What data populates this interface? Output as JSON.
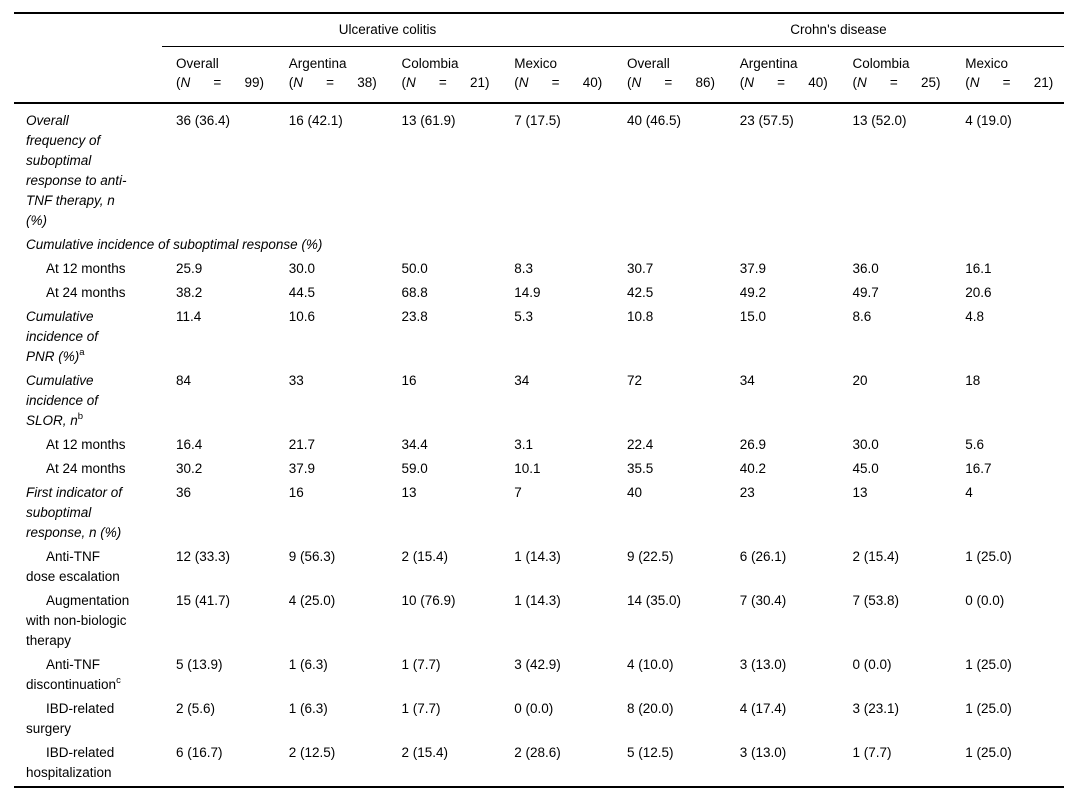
{
  "table": {
    "group_headers": [
      {
        "label": "Ulcerative colitis"
      },
      {
        "label": "Crohn's disease"
      }
    ],
    "columns": [
      {
        "name": "Overall",
        "n_label": "(N = 99)"
      },
      {
        "name": "Argentina",
        "n_label": "(N = 38)"
      },
      {
        "name": "Colombia",
        "n_label": "(N = 21)"
      },
      {
        "name": "Mexico",
        "n_label": "(N = 40)"
      },
      {
        "name": "Overall",
        "n_label": "(N = 86)"
      },
      {
        "name": "Argentina",
        "n_label": "(N = 40)"
      },
      {
        "name": "Colombia",
        "n_label": "(N = 25)"
      },
      {
        "name": "Mexico",
        "n_label": "(N = 21)"
      }
    ],
    "rows": [
      {
        "label": "Overall frequency of suboptimal response to anti-TNF therapy, n (%)",
        "style": "category",
        "values": [
          "36 (36.4)",
          "16 (42.1)",
          "13 (61.9)",
          "7 (17.5)",
          "40 (46.5)",
          "23 (57.5)",
          "13 (52.0)",
          "4 (19.0)"
        ]
      },
      {
        "label": "Cumulative incidence of suboptimal response (%)",
        "style": "category-span",
        "values": []
      },
      {
        "label": "At 12 months",
        "style": "sub",
        "values": [
          "25.9",
          "30.0",
          "50.0",
          "8.3",
          "30.7",
          "37.9",
          "36.0",
          "16.1"
        ]
      },
      {
        "label": "At 24 months",
        "style": "sub",
        "values": [
          "38.2",
          "44.5",
          "68.8",
          "14.9",
          "42.5",
          "49.2",
          "49.7",
          "20.6"
        ]
      },
      {
        "label": "Cumulative incidence of PNR (%)",
        "sup": "a",
        "style": "category",
        "values": [
          "11.4",
          "10.6",
          "23.8",
          "5.3",
          "10.8",
          "15.0",
          "8.6",
          "4.8"
        ]
      },
      {
        "label": "Cumulative incidence of SLOR, n",
        "sup": "b",
        "style": "category",
        "values": [
          "84",
          "33",
          "16",
          "34",
          "72",
          "34",
          "20",
          "18"
        ]
      },
      {
        "label": "At 12 months",
        "style": "sub",
        "values": [
          "16.4",
          "21.7",
          "34.4",
          "3.1",
          "22.4",
          "26.9",
          "30.0",
          "5.6"
        ]
      },
      {
        "label": "At 24 months",
        "style": "sub",
        "values": [
          "30.2",
          "37.9",
          "59.0",
          "10.1",
          "35.5",
          "40.2",
          "45.0",
          "16.7"
        ]
      },
      {
        "label": "First indicator of suboptimal response, n (%)",
        "style": "category",
        "values": [
          "36",
          "16",
          "13",
          "7",
          "40",
          "23",
          "13",
          "4"
        ]
      },
      {
        "label": "Anti-TNF dose escalation",
        "style": "sub",
        "values": [
          "12 (33.3)",
          "9 (56.3)",
          "2 (15.4)",
          "1 (14.3)",
          "9 (22.5)",
          "6 (26.1)",
          "2 (15.4)",
          "1 (25.0)"
        ]
      },
      {
        "label": "Augmentation with non-biologic therapy",
        "style": "sub",
        "values": [
          "15 (41.7)",
          "4 (25.0)",
          "10 (76.9)",
          "1 (14.3)",
          "14 (35.0)",
          "7 (30.4)",
          "7 (53.8)",
          "0 (0.0)"
        ]
      },
      {
        "label": "Anti-TNF discontinuation",
        "sup": "c",
        "style": "sub",
        "values": [
          "5 (13.9)",
          "1 (6.3)",
          "1 (7.7)",
          "3 (42.9)",
          "4 (10.0)",
          "3 (13.0)",
          "0 (0.0)",
          "1 (25.0)"
        ]
      },
      {
        "label": "IBD-related surgery",
        "style": "sub",
        "values": [
          "2 (5.6)",
          "1 (6.3)",
          "1 (7.7)",
          "0 (0.0)",
          "8 (20.0)",
          "4 (17.4)",
          "3 (23.1)",
          "1 (25.0)"
        ]
      },
      {
        "label": "IBD-related hospitalization",
        "style": "sub",
        "values": [
          "6 (16.7)",
          "2 (12.5)",
          "2 (15.4)",
          "2 (28.6)",
          "5 (12.5)",
          "3 (13.0)",
          "1 (7.7)",
          "1 (25.0)"
        ]
      }
    ]
  }
}
